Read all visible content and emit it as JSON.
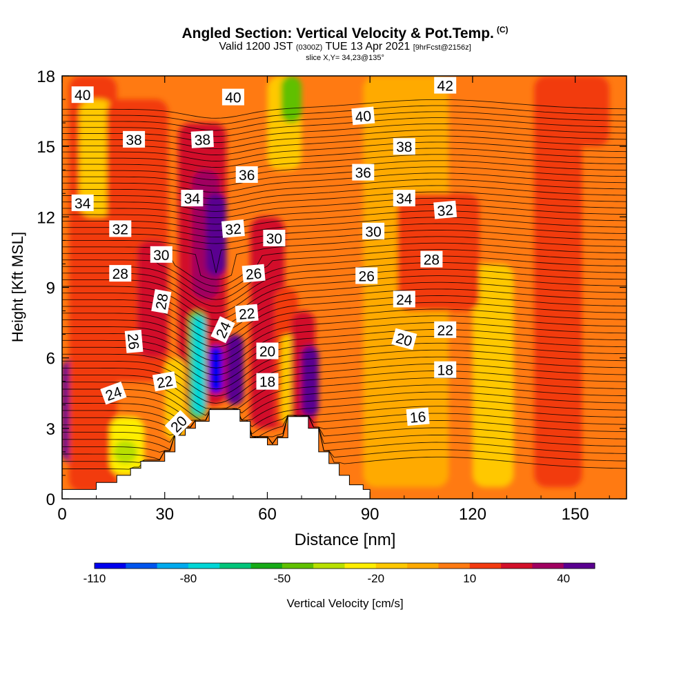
{
  "titles": {
    "main": "Angled Section: Vertical Velocity & Pot.Temp.",
    "copyright": "(C)",
    "valid_prefix": "Valid 1200 JST",
    "valid_utc": "(0300Z)",
    "valid_date": "TUE 13 Apr 2021",
    "forecast": "[9hrFcst@2156z]",
    "slice": "slice X,Y= 34,23@135°"
  },
  "chart_data": {
    "type": "heatmap",
    "title": "Angled Section: Vertical Velocity & Pot.Temp.",
    "xlabel": "Distance [nm]",
    "ylabel": "Height [Kft MSL]",
    "xlim": [
      0,
      165
    ],
    "ylim": [
      0,
      18
    ],
    "x_ticks": [
      0,
      30,
      60,
      90,
      120,
      150
    ],
    "y_ticks": [
      0,
      3,
      6,
      9,
      12,
      15,
      18
    ],
    "field": "Vertical Velocity [cm/s]",
    "colorbar": {
      "label": "Vertical Velocity [cm/s]",
      "tick_labels": [
        "-110",
        "-80",
        "-50",
        "-20",
        "10",
        "40"
      ],
      "tick_values": [
        -110,
        -80,
        -50,
        -20,
        10,
        40
      ],
      "min": -110,
      "max": 50,
      "bin": 10,
      "colors": [
        "#0000ee",
        "#0055ee",
        "#00aaee",
        "#00d6d6",
        "#00c47a",
        "#16aa16",
        "#60c000",
        "#b8e000",
        "#ffee00",
        "#ffc800",
        "#ffaa00",
        "#ff7a12",
        "#f23a10",
        "#d2102a",
        "#a00060",
        "#5a0090"
      ]
    },
    "terrain_profile": [
      [
        0,
        0.4
      ],
      [
        10,
        0.4
      ],
      [
        10,
        0.7
      ],
      [
        16,
        0.7
      ],
      [
        16,
        1
      ],
      [
        20,
        1
      ],
      [
        20,
        1.3
      ],
      [
        23,
        1.3
      ],
      [
        23,
        1.6
      ],
      [
        30,
        1.6
      ],
      [
        30,
        2
      ],
      [
        33,
        2
      ],
      [
        33,
        2.7
      ],
      [
        36,
        2.7
      ],
      [
        36,
        3
      ],
      [
        39,
        3
      ],
      [
        39,
        3.3
      ],
      [
        43,
        3.3
      ],
      [
        43,
        3.8
      ],
      [
        52,
        3.8
      ],
      [
        52,
        3.3
      ],
      [
        55,
        3.3
      ],
      [
        55,
        2.6
      ],
      [
        60,
        2.6
      ],
      [
        60,
        2.3
      ],
      [
        63,
        2.3
      ],
      [
        63,
        2.6
      ],
      [
        66,
        2.6
      ],
      [
        66,
        3.5
      ],
      [
        72,
        3.5
      ],
      [
        72,
        3
      ],
      [
        75,
        3
      ],
      [
        75,
        2
      ],
      [
        78,
        2
      ],
      [
        78,
        1.5
      ],
      [
        81,
        1.5
      ],
      [
        81,
        1
      ],
      [
        84,
        1
      ],
      [
        84,
        0.6
      ],
      [
        88,
        0.6
      ],
      [
        88,
        0.4
      ],
      [
        90,
        0.4
      ],
      [
        90,
        0
      ]
    ],
    "velocity_features": [
      {
        "x": 0,
        "width": 7,
        "z_bottom": 1.5,
        "z_top": 6,
        "value": 45
      },
      {
        "x": 2,
        "width": 14,
        "z_bottom": 0.3,
        "z_top": 18,
        "value": 10
      },
      {
        "x": 5,
        "width": 10,
        "z_bottom": 12,
        "z_top": 17,
        "value": -20
      },
      {
        "x": 14,
        "width": 10,
        "z_bottom": 1,
        "z_top": 3.5,
        "value": -30
      },
      {
        "x": 15,
        "width": 7,
        "z_bottom": 1.5,
        "z_top": 2.5,
        "value": -40
      },
      {
        "x": 13,
        "width": 18,
        "z_bottom": 5,
        "z_top": 17,
        "value": 15
      },
      {
        "x": 22,
        "width": 9,
        "z_bottom": 6,
        "z_top": 11,
        "value": 25
      },
      {
        "x": 34,
        "width": 14,
        "z_bottom": 4,
        "z_top": 16,
        "value": 20
      },
      {
        "x": 38,
        "width": 8,
        "z_bottom": 8.5,
        "z_top": 14,
        "value": 30
      },
      {
        "x": 42,
        "width": 6,
        "z_bottom": 9.5,
        "z_top": 13,
        "value": 45
      },
      {
        "x": 30,
        "width": 6,
        "z_bottom": 2.5,
        "z_top": 6,
        "value": -20
      },
      {
        "x": 37,
        "width": 5,
        "z_bottom": 3.4,
        "z_top": 8,
        "value": -50
      },
      {
        "x": 38,
        "width": 4,
        "z_bottom": 3.6,
        "z_top": 7.8,
        "value": -80
      },
      {
        "x": 43,
        "width": 4,
        "z_bottom": 4.5,
        "z_top": 6.5,
        "value": -110
      },
      {
        "x": 55,
        "width": 10,
        "z_bottom": 3,
        "z_top": 12,
        "value": 20
      },
      {
        "x": 48,
        "width": 5,
        "z_bottom": 4,
        "z_top": 7,
        "value": 40
      },
      {
        "x": 62,
        "width": 7,
        "z_bottom": 3,
        "z_top": 9,
        "value": 15
      },
      {
        "x": 64,
        "width": 4,
        "z_bottom": 3.2,
        "z_top": 7,
        "value": -20
      },
      {
        "x": 67,
        "width": 7,
        "z_bottom": 2,
        "z_top": 8,
        "value": 25
      },
      {
        "x": 70,
        "width": 5,
        "z_bottom": 3.5,
        "z_top": 6.5,
        "value": 45
      },
      {
        "x": 60,
        "width": 10,
        "z_bottom": 14,
        "z_top": 18,
        "value": -20
      },
      {
        "x": 64,
        "width": 6,
        "z_bottom": 16,
        "z_top": 18,
        "value": -50
      },
      {
        "x": 88,
        "width": 25,
        "z_bottom": 0.5,
        "z_top": 18,
        "value": -10
      },
      {
        "x": 120,
        "width": 12,
        "z_bottom": 0.5,
        "z_top": 10,
        "value": -15
      },
      {
        "x": 98,
        "width": 24,
        "z_bottom": 8,
        "z_top": 13,
        "value": 10
      },
      {
        "x": 138,
        "width": 14,
        "z_bottom": 0.5,
        "z_top": 18,
        "value": 10
      },
      {
        "x": 140,
        "width": 20,
        "z_bottom": 15,
        "z_top": 18,
        "value": 15
      }
    ],
    "pot_temp_labels": [
      {
        "text": "40",
        "x": 6,
        "y": 17.2,
        "rot": 0
      },
      {
        "text": "40",
        "x": 50,
        "y": 17.1,
        "rot": 0
      },
      {
        "text": "40",
        "x": 88,
        "y": 16.3,
        "rot": -5
      },
      {
        "text": "42",
        "x": 112,
        "y": 17.6,
        "rot": 0
      },
      {
        "text": "38",
        "x": 21,
        "y": 15.3,
        "rot": 0
      },
      {
        "text": "38",
        "x": 41,
        "y": 15.3,
        "rot": -3
      },
      {
        "text": "38",
        "x": 100,
        "y": 15.0,
        "rot": 0
      },
      {
        "text": "36",
        "x": 54,
        "y": 13.8,
        "rot": 0
      },
      {
        "text": "36",
        "x": 88,
        "y": 13.9,
        "rot": 0
      },
      {
        "text": "34",
        "x": 6,
        "y": 12.6,
        "rot": 0
      },
      {
        "text": "34",
        "x": 38,
        "y": 12.8,
        "rot": 0
      },
      {
        "text": "34",
        "x": 100,
        "y": 12.8,
        "rot": 0
      },
      {
        "text": "32",
        "x": 17,
        "y": 11.5,
        "rot": 0
      },
      {
        "text": "32",
        "x": 50,
        "y": 11.5,
        "rot": -5
      },
      {
        "text": "32",
        "x": 112,
        "y": 12.3,
        "rot": -5
      },
      {
        "text": "30",
        "x": 29,
        "y": 10.4,
        "rot": 0
      },
      {
        "text": "30",
        "x": 62,
        "y": 11.1,
        "rot": 0
      },
      {
        "text": "30",
        "x": 91,
        "y": 11.4,
        "rot": 0
      },
      {
        "text": "28",
        "x": 17,
        "y": 9.6,
        "rot": 0
      },
      {
        "text": "28",
        "x": 29,
        "y": 8.4,
        "rot": -80
      },
      {
        "text": "28",
        "x": 108,
        "y": 10.2,
        "rot": 0
      },
      {
        "text": "26",
        "x": 56,
        "y": 9.6,
        "rot": -5
      },
      {
        "text": "26",
        "x": 89,
        "y": 9.5,
        "rot": 0
      },
      {
        "text": "26",
        "x": 21,
        "y": 6.7,
        "rot": 85
      },
      {
        "text": "24",
        "x": 100,
        "y": 8.5,
        "rot": 0
      },
      {
        "text": "24",
        "x": 47,
        "y": 7.2,
        "rot": -65
      },
      {
        "text": "24",
        "x": 15,
        "y": 4.5,
        "rot": -20
      },
      {
        "text": "22",
        "x": 54,
        "y": 7.9,
        "rot": -5
      },
      {
        "text": "22",
        "x": 112,
        "y": 7.2,
        "rot": 0
      },
      {
        "text": "22",
        "x": 30,
        "y": 5.0,
        "rot": -10
      },
      {
        "text": "20",
        "x": 60,
        "y": 6.3,
        "rot": 0
      },
      {
        "text": "20",
        "x": 100,
        "y": 6.8,
        "rot": 15
      },
      {
        "text": "20",
        "x": 34,
        "y": 3.2,
        "rot": -45
      },
      {
        "text": "18",
        "x": 60,
        "y": 5.0,
        "rot": 0
      },
      {
        "text": "18",
        "x": 112,
        "y": 5.5,
        "rot": 0
      },
      {
        "text": "16",
        "x": 104,
        "y": 3.5,
        "rot": -5
      }
    ]
  }
}
